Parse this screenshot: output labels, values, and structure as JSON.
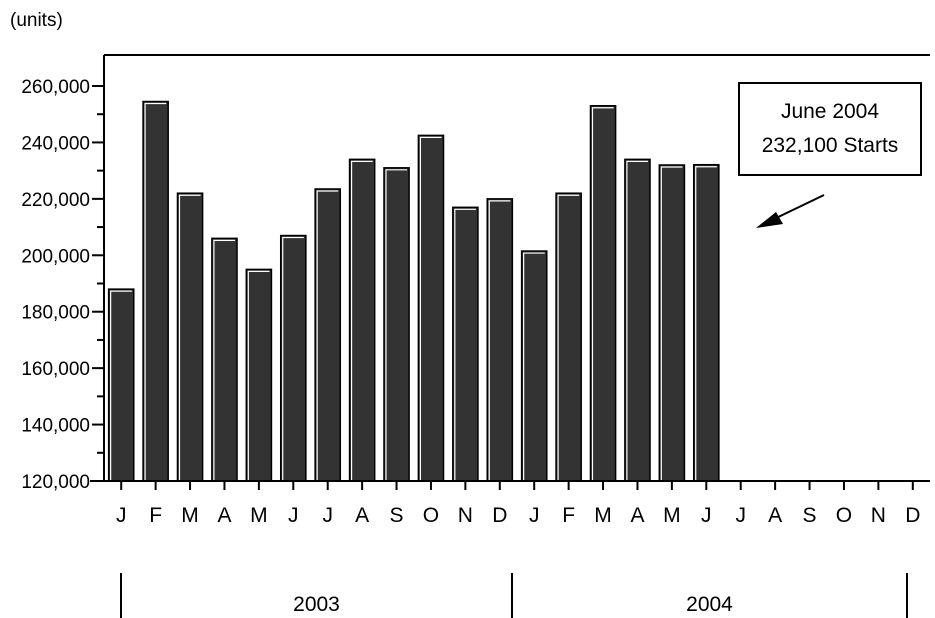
{
  "unit_label": "(units)",
  "annotation": {
    "line1": "June 2004",
    "line2": "232,100 Starts"
  },
  "colors": {
    "bar": "#333333",
    "bar_highlight": "#ffffff",
    "axis": "#000000"
  },
  "chart_data": {
    "type": "bar",
    "title": "",
    "xlabel": "",
    "ylabel": "(units)",
    "ylim": [
      120000,
      265000
    ],
    "yticks": [
      120000,
      140000,
      160000,
      180000,
      200000,
      220000,
      240000,
      260000
    ],
    "ytick_labels": [
      "120,000",
      "140,000",
      "160,000",
      "180,000",
      "200,000",
      "220,000",
      "240,000",
      "260,000"
    ],
    "categories": [
      "J",
      "F",
      "M",
      "A",
      "M",
      "J",
      "J",
      "A",
      "S",
      "O",
      "N",
      "D",
      "J",
      "F",
      "M",
      "A",
      "M",
      "J",
      "J",
      "A",
      "S",
      "O",
      "N",
      "D"
    ],
    "values": [
      188000,
      254500,
      222000,
      206000,
      195000,
      207000,
      223500,
      234000,
      231000,
      242500,
      217000,
      220000,
      201500,
      222000,
      253000,
      234000,
      232000,
      232100,
      null,
      null,
      null,
      null,
      null,
      null
    ],
    "groups": [
      {
        "label": "2003",
        "start": 0,
        "end": 11
      },
      {
        "label": "2004",
        "start": 12,
        "end": 23
      }
    ],
    "grid": false
  }
}
